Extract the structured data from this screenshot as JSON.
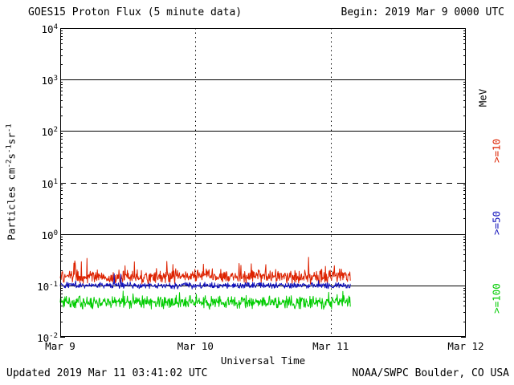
{
  "header": {
    "title": "GOES15 Proton Flux (5 minute data)",
    "begin": "Begin: 2019 Mar 9 0000 UTC"
  },
  "footer": {
    "updated": "Updated 2019 Mar 11 03:41:02 UTC",
    "credit": "NOAA/SWPC Boulder, CO USA"
  },
  "chart_data": {
    "type": "line",
    "title": "GOES15 Proton Flux (5 minute data)",
    "xlabel": "Universal Time",
    "ylabel_plain": "Particles cm-2 s-1 sr-1",
    "ylabel_segments": [
      {
        "text": "Particles  cm",
        "sup": false
      },
      {
        "text": "-2",
        "sup": true
      },
      {
        "text": "s",
        "sup": false
      },
      {
        "text": "-1",
        "sup": true
      },
      {
        "text": "sr",
        "sup": false
      },
      {
        "text": "-1",
        "sup": true
      }
    ],
    "right_axis_unit": "MeV",
    "x_ticks": [
      "Mar 9",
      "Mar 10",
      "Mar 11",
      "Mar 12"
    ],
    "y_tick_exponents": [
      "4",
      "3",
      "2",
      "1",
      "0",
      "-1",
      "-2"
    ],
    "ylim_log10": [
      -2,
      4
    ],
    "x_days_span": 3,
    "samples_per_day": 288,
    "data_end_day_fraction": 2.15,
    "grid": {
      "hlines": [
        {
          "log10": 3,
          "style": "solid"
        },
        {
          "log10": 2,
          "style": "solid"
        },
        {
          "log10": 1,
          "style": "dashed"
        },
        {
          "log10": 0,
          "style": "solid"
        },
        {
          "log10": -1,
          "style": "solid"
        }
      ],
      "vlines_at_day": [
        1,
        2
      ]
    },
    "frame_color": "#000000",
    "series": [
      {
        "name": "ge10",
        "label": ">=10",
        "units": "MeV",
        "color": "#dd2200",
        "log10_mean": -0.83,
        "log10_noise": 0.16,
        "spike_log10": 0.35,
        "spike_prob": 0.05,
        "log10_max": -0.36,
        "approx_flux_mean": 0.15,
        "approx_flux_range": [
          0.07,
          0.44
        ]
      },
      {
        "name": "ge50",
        "label": ">=50",
        "units": "MeV",
        "color": "#1111bb",
        "log10_mean": -1.0,
        "log10_noise": 0.07,
        "spike_log10": 0.3,
        "spike_prob": 0.02,
        "log10_max": -0.66,
        "approx_flux_mean": 0.1,
        "approx_flux_range": [
          0.08,
          0.22
        ]
      },
      {
        "name": "ge100",
        "label": ">=100",
        "units": "MeV",
        "color": "#00cc00",
        "log10_mean": -1.33,
        "log10_noise": 0.15,
        "spike_log10": 0.2,
        "spike_prob": 0.04,
        "log10_max": -1.02,
        "approx_flux_mean": 0.047,
        "approx_flux_range": [
          0.025,
          0.095
        ]
      }
    ]
  }
}
